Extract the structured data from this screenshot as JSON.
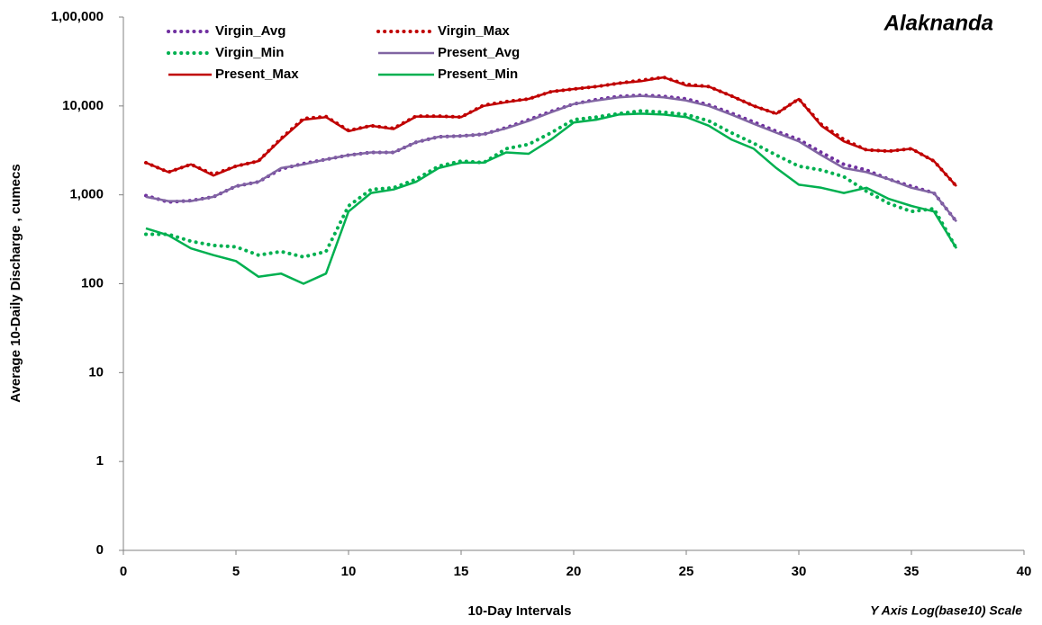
{
  "chart_data": {
    "type": "line",
    "title": "Alaknanda",
    "x_label": "10-Day Intervals",
    "y_label": "Average 10-Daily Discharge , cumecs",
    "note": "Y Axis  Log(base10)  Scale",
    "y_scale": "log",
    "legend": "upper left",
    "xlim": [
      0,
      40
    ],
    "xticks": [
      0,
      5,
      10,
      15,
      20,
      25,
      30,
      35,
      40
    ],
    "ylim": [
      0.1,
      100000
    ],
    "yticks": [
      {
        "value": 0.1,
        "label": "0"
      },
      1,
      10,
      100,
      {
        "value": 1000,
        "label": "1,000"
      },
      {
        "value": 10000,
        "label": "10,000"
      },
      {
        "value": 100000,
        "label": "1,00,000"
      }
    ],
    "x": [
      1,
      2,
      3,
      4,
      5,
      6,
      7,
      8,
      9,
      10,
      11,
      12,
      13,
      14,
      15,
      16,
      17,
      18,
      19,
      20,
      21,
      22,
      23,
      24,
      25,
      26,
      27,
      28,
      29,
      30,
      31,
      32,
      33,
      34,
      35,
      36,
      37
    ],
    "series": [
      {
        "name": "Virgin_Avg",
        "color": "#7030a0",
        "style": "dotted",
        "values": [
          980,
          830,
          860,
          950,
          1250,
          1400,
          1950,
          2250,
          2500,
          2800,
          3000,
          3000,
          3900,
          4500,
          4600,
          4800,
          5700,
          7000,
          8700,
          10500,
          11800,
          12800,
          13200,
          12800,
          12000,
          10300,
          8300,
          6600,
          5200,
          4200,
          3000,
          2200,
          1900,
          1500,
          1250,
          1050,
          500
        ]
      },
      {
        "name": "Virgin_Max",
        "color": "#c00000",
        "style": "dotted",
        "values": [
          2300,
          1800,
          2200,
          1700,
          2100,
          2400,
          4300,
          7200,
          7600,
          5300,
          6000,
          5600,
          7700,
          7700,
          7500,
          10200,
          11200,
          12000,
          14500,
          15500,
          16500,
          18000,
          19500,
          21000,
          17500,
          16500,
          13000,
          10000,
          8200,
          12000,
          6200,
          4200,
          3200,
          3100,
          3300,
          2400,
          1250
        ]
      },
      {
        "name": "Virgin_Min",
        "color": "#00b050",
        "style": "dotted",
        "values": [
          360,
          360,
          300,
          270,
          260,
          210,
          230,
          200,
          230,
          750,
          1150,
          1200,
          1500,
          2100,
          2400,
          2300,
          3300,
          3700,
          5000,
          7000,
          7500,
          8200,
          8800,
          8500,
          8000,
          6800,
          5000,
          3800,
          2800,
          2100,
          1900,
          1600,
          1100,
          800,
          650,
          700,
          250
        ]
      },
      {
        "name": "Present_Avg",
        "color": "#8064a2",
        "style": "solid",
        "values": [
          950,
          850,
          850,
          950,
          1250,
          1400,
          2000,
          2200,
          2500,
          2800,
          3000,
          3000,
          3900,
          4500,
          4600,
          4800,
          5600,
          6800,
          8500,
          10500,
          11500,
          12500,
          13000,
          12500,
          11500,
          10000,
          8000,
          6300,
          5000,
          4000,
          2800,
          2000,
          1800,
          1500,
          1200,
          1050,
          500
        ]
      },
      {
        "name": "Present_Max",
        "color": "#c00000",
        "style": "solid",
        "values": [
          2300,
          1800,
          2200,
          1650,
          2100,
          2400,
          4200,
          7000,
          7500,
          5200,
          6000,
          5500,
          7600,
          7600,
          7500,
          10000,
          11000,
          12000,
          14500,
          15500,
          16500,
          18000,
          19000,
          21000,
          17000,
          16500,
          13000,
          10000,
          8200,
          12000,
          6000,
          4000,
          3200,
          3100,
          3300,
          2400,
          1250
        ]
      },
      {
        "name": "Present_Min",
        "color": "#00b050",
        "style": "solid",
        "values": [
          420,
          350,
          250,
          210,
          180,
          120,
          130,
          100,
          130,
          650,
          1050,
          1150,
          1400,
          2000,
          2300,
          2300,
          3000,
          2900,
          4200,
          6500,
          7000,
          8000,
          8200,
          8000,
          7500,
          6000,
          4200,
          3300,
          2000,
          1300,
          1200,
          1050,
          1200,
          900,
          750,
          650,
          250
        ]
      }
    ]
  }
}
